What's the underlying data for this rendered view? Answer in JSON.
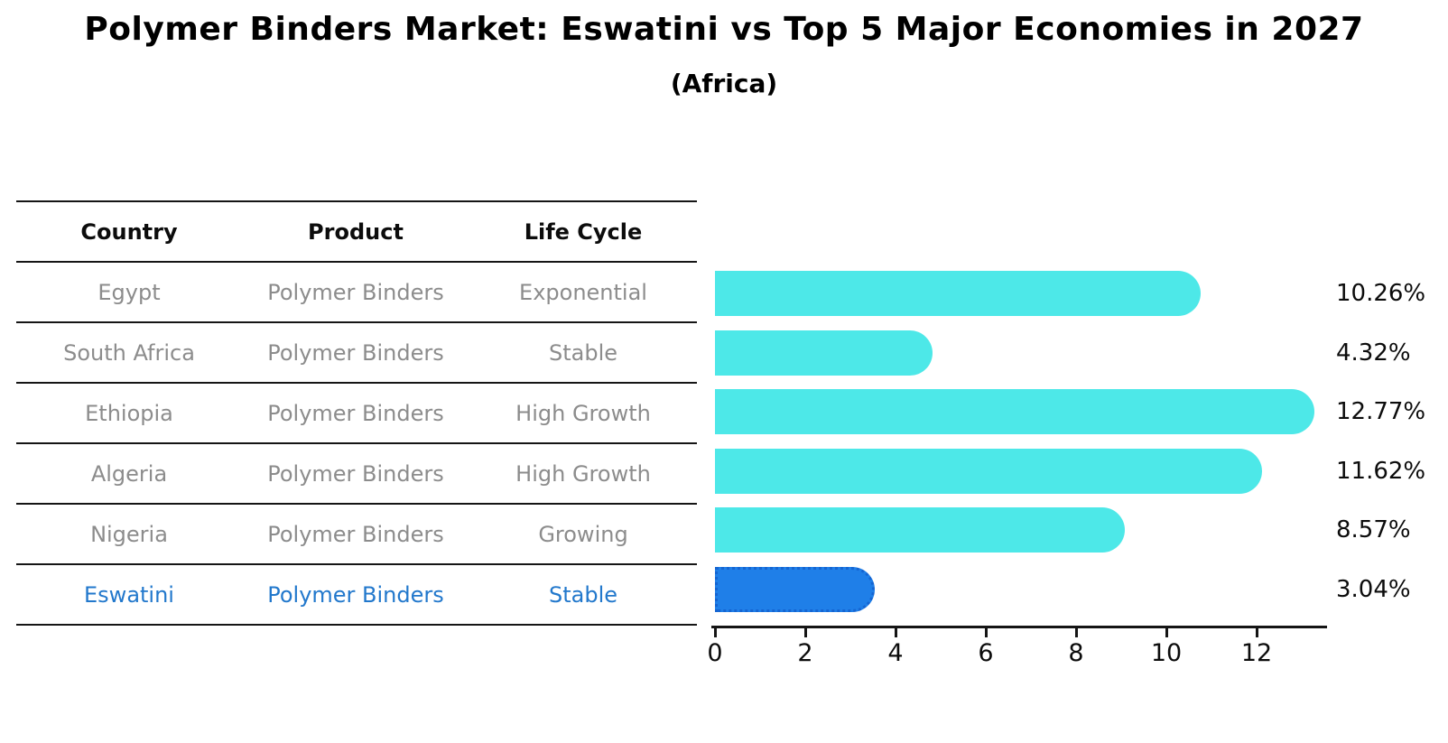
{
  "title": "Polymer Binders Market: Eswatini vs Top 5 Major Economies in 2027",
  "subtitle": "(Africa)",
  "table": {
    "headers": [
      "Country",
      "Product",
      "Life Cycle"
    ],
    "rows": [
      {
        "country": "Egypt",
        "product": "Polymer Binders",
        "life_cycle": "Exponential",
        "highlight": false
      },
      {
        "country": "South Africa",
        "product": "Polymer Binders",
        "life_cycle": "Stable",
        "highlight": false
      },
      {
        "country": "Ethiopia",
        "product": "Polymer Binders",
        "life_cycle": "High Growth",
        "highlight": false
      },
      {
        "country": "Algeria",
        "product": "Polymer Binders",
        "life_cycle": "High Growth",
        "highlight": false
      },
      {
        "country": "Nigeria",
        "product": "Polymer Binders",
        "life_cycle": "Growing",
        "highlight": false
      },
      {
        "country": "Eswatini",
        "product": "Polymer Binders",
        "life_cycle": "Stable",
        "highlight": true
      }
    ]
  },
  "chart_data": {
    "type": "bar",
    "orientation": "horizontal",
    "title": "Polymer Binders Market: Eswatini vs Top 5 Major Economies in 2027 (Africa)",
    "categories": [
      "Egypt",
      "South Africa",
      "Ethiopia",
      "Algeria",
      "Nigeria",
      "Eswatini"
    ],
    "values": [
      10.26,
      4.32,
      12.77,
      11.62,
      8.57,
      3.04
    ],
    "value_labels": [
      "10.26%",
      "4.32%",
      "12.77%",
      "11.62%",
      "8.57%",
      "3.04%"
    ],
    "highlight_index": 5,
    "x_ticks": [
      0,
      2,
      4,
      6,
      8,
      10,
      12
    ],
    "xlim": [
      0,
      13.5
    ],
    "grid": false,
    "legend": false,
    "xlabel": "",
    "ylabel": ""
  },
  "colors": {
    "bar": "#4DE8E8",
    "highlight_bar": "#1F7FE8",
    "highlight_bar_border": "#1565D2",
    "highlight_text": "#2278CC",
    "row_text": "#8C8C8C",
    "header_text": "#0C0C0C",
    "axis": "#151515"
  }
}
